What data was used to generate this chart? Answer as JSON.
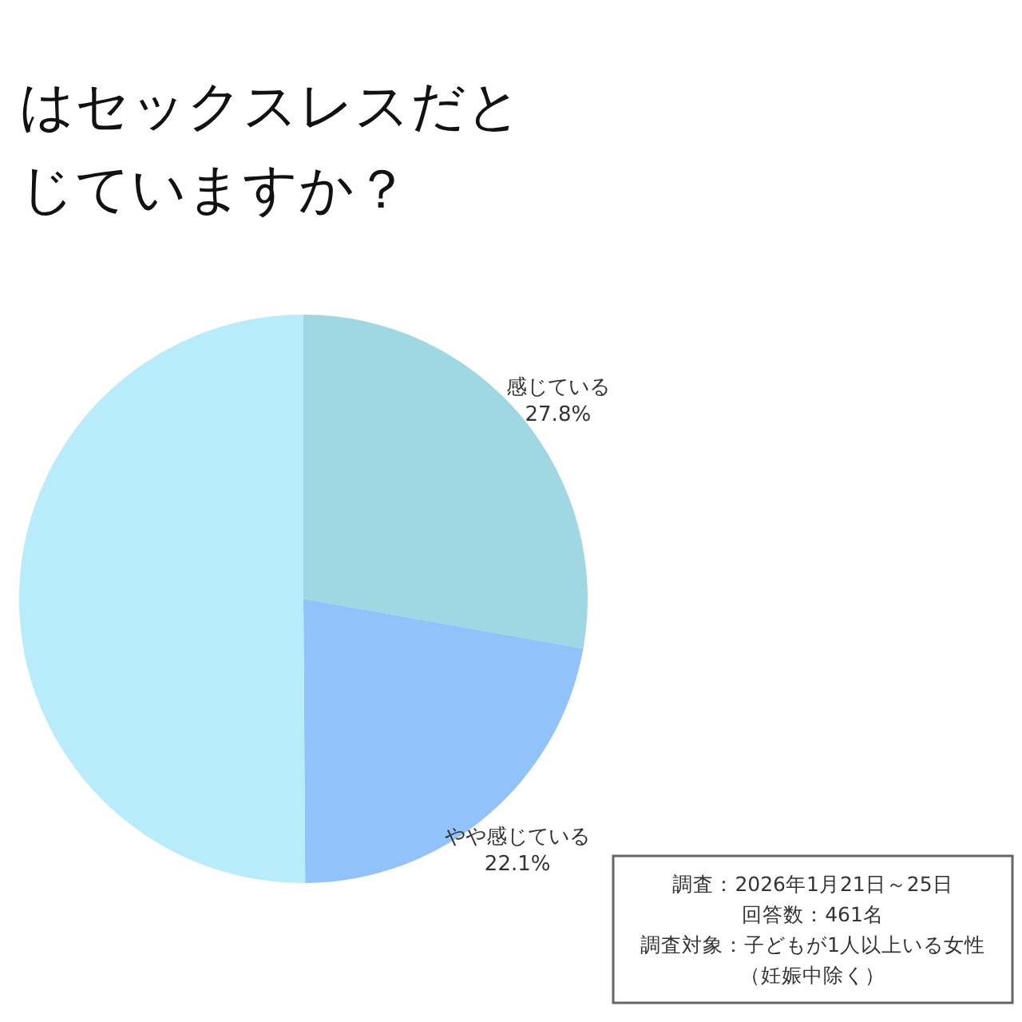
{
  "chart_data": {
    "type": "pie",
    "title": "はセックスレスだとじていますか？",
    "categories": [
      "感じている",
      "やや感じている",
      null
    ],
    "values": [
      27.8,
      22.1,
      50.1
    ],
    "value_labels": [
      "27.8%",
      "22.1%",
      null
    ],
    "colors": [
      "#9fd8e2",
      "#91c3fa",
      "#b9ecfa"
    ],
    "legend": false,
    "annotations": [
      "調査：2026年1月21日～25日",
      "回答数：461名",
      "調査対象：子どもが1人以上いる女性",
      "（妊娠中除く）"
    ]
  }
}
